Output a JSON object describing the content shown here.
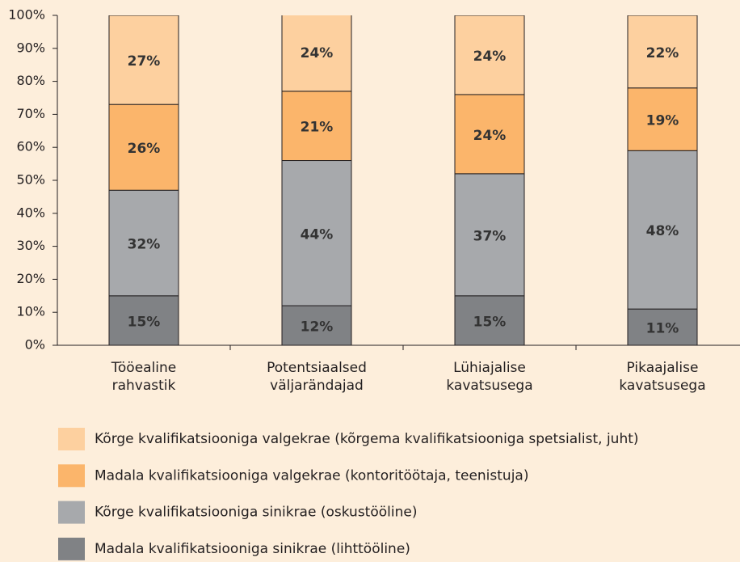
{
  "chart_data": {
    "type": "stacked_bar",
    "categories": [
      [
        "Tööealine",
        "rahvastik"
      ],
      [
        "Potentsiaalsed",
        "väljarändajad"
      ],
      [
        "Lühiajalise",
        "kavatsusega"
      ],
      [
        "Pikaajalise",
        "kavatsusega"
      ]
    ],
    "series": [
      {
        "name": "Madala kvalifikatsiooniga sinikrae (lihttööline)",
        "color": "#808285",
        "values": [
          15,
          12,
          15,
          11
        ],
        "value_labels": [
          "15%",
          "12%",
          "15%",
          "11%"
        ]
      },
      {
        "name": "Kõrge kvalifikatsiooniga sinikrae (oskustööline)",
        "color": "#a7a9ac",
        "values": [
          32,
          44,
          37,
          48
        ],
        "value_labels": [
          "32%",
          "44%",
          "37%",
          "48%"
        ]
      },
      {
        "name": "Madala kvalifikatsiooniga valgekrae (kontoritöötaja, teenistuja)",
        "color": "#fbb56b",
        "values": [
          26,
          21,
          24,
          19
        ],
        "value_labels": [
          "26%",
          "21%",
          "24%",
          "19%"
        ]
      },
      {
        "name": "Kõrge kvalifikatsiooniga valgekrae (kõrgema kvalifikatsiooniga spetsialist, juht)",
        "color": "#fdd09f",
        "values": [
          27,
          24,
          24,
          22
        ],
        "value_labels": [
          "27%",
          "24%",
          "24%",
          "22%"
        ]
      }
    ],
    "ylim": [
      0,
      100
    ],
    "yticks": [
      {
        "value": 0,
        "label": "0%"
      },
      {
        "value": 10,
        "label": "10%"
      },
      {
        "value": 20,
        "label": "20%"
      },
      {
        "value": 30,
        "label": "30%"
      },
      {
        "value": 40,
        "label": "40%"
      },
      {
        "value": 50,
        "label": "50%"
      },
      {
        "value": 60,
        "label": "60%"
      },
      {
        "value": 70,
        "label": "70%"
      },
      {
        "value": 80,
        "label": "80%"
      },
      {
        "value": 90,
        "label": "90%"
      },
      {
        "value": 100,
        "label": "100%"
      }
    ]
  }
}
